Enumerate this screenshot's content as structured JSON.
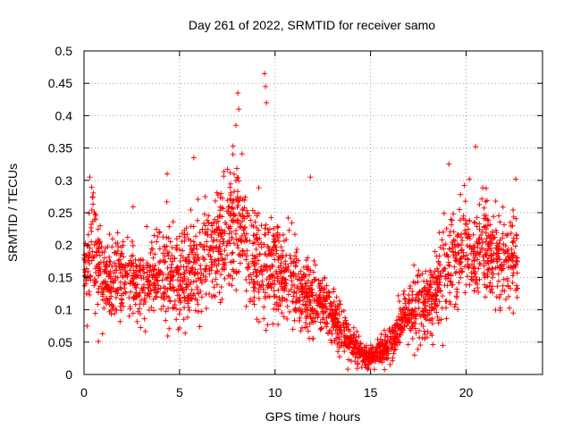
{
  "chart_data": {
    "type": "scatter",
    "title": "Day 261 of 2022, SRMTID for receiver samo",
    "xlabel": "GPS time / hours",
    "ylabel": "SRMTID / TECUs",
    "xlim": [
      0,
      24
    ],
    "ylim": [
      0,
      0.5
    ],
    "x_ticks": [
      0,
      5,
      10,
      15,
      20
    ],
    "y_ticks": [
      0,
      0.05,
      0.1,
      0.15,
      0.2,
      0.25,
      0.3,
      0.35,
      0.4,
      0.45,
      0.5
    ],
    "x_tick_labels": [
      "0",
      "5",
      "10",
      "15",
      "20"
    ],
    "y_tick_labels": [
      "0",
      "0.05",
      "0.1",
      "0.15",
      "0.2",
      "0.25",
      "0.3",
      "0.35",
      "0.4",
      "0.45",
      "0.5"
    ],
    "grid": true,
    "marker": "+",
    "colors": {
      "points": "#ff0000",
      "grid": "#a0a0a0",
      "axes": "#000000"
    },
    "trend_profile": [
      {
        "x": 0.0,
        "y": 0.155,
        "spread": 0.06
      },
      {
        "x": 0.5,
        "y": 0.2,
        "spread": 0.08
      },
      {
        "x": 1.0,
        "y": 0.14,
        "spread": 0.05
      },
      {
        "x": 2.0,
        "y": 0.15,
        "spread": 0.06
      },
      {
        "x": 3.0,
        "y": 0.145,
        "spread": 0.06
      },
      {
        "x": 4.0,
        "y": 0.16,
        "spread": 0.07
      },
      {
        "x": 5.0,
        "y": 0.15,
        "spread": 0.06
      },
      {
        "x": 6.0,
        "y": 0.16,
        "spread": 0.07
      },
      {
        "x": 7.0,
        "y": 0.2,
        "spread": 0.08
      },
      {
        "x": 8.0,
        "y": 0.23,
        "spread": 0.09
      },
      {
        "x": 9.0,
        "y": 0.16,
        "spread": 0.07
      },
      {
        "x": 10.0,
        "y": 0.16,
        "spread": 0.07
      },
      {
        "x": 11.0,
        "y": 0.14,
        "spread": 0.06
      },
      {
        "x": 12.0,
        "y": 0.12,
        "spread": 0.05
      },
      {
        "x": 13.0,
        "y": 0.09,
        "spread": 0.04
      },
      {
        "x": 14.0,
        "y": 0.045,
        "spread": 0.025
      },
      {
        "x": 15.0,
        "y": 0.025,
        "spread": 0.015
      },
      {
        "x": 16.0,
        "y": 0.045,
        "spread": 0.025
      },
      {
        "x": 17.0,
        "y": 0.1,
        "spread": 0.04
      },
      {
        "x": 18.0,
        "y": 0.11,
        "spread": 0.05
      },
      {
        "x": 19.0,
        "y": 0.17,
        "spread": 0.07
      },
      {
        "x": 20.0,
        "y": 0.19,
        "spread": 0.07
      },
      {
        "x": 21.0,
        "y": 0.19,
        "spread": 0.07
      },
      {
        "x": 22.0,
        "y": 0.17,
        "spread": 0.06
      },
      {
        "x": 22.7,
        "y": 0.17,
        "spread": 0.06
      }
    ],
    "notable_points": [
      {
        "x": 9.45,
        "y": 0.465
      },
      {
        "x": 9.5,
        "y": 0.445
      },
      {
        "x": 9.55,
        "y": 0.42
      },
      {
        "x": 8.05,
        "y": 0.435
      },
      {
        "x": 8.1,
        "y": 0.41
      },
      {
        "x": 7.95,
        "y": 0.385
      },
      {
        "x": 7.8,
        "y": 0.34
      },
      {
        "x": 5.75,
        "y": 0.335
      },
      {
        "x": 20.5,
        "y": 0.352
      },
      {
        "x": 19.1,
        "y": 0.325
      },
      {
        "x": 0.3,
        "y": 0.305
      },
      {
        "x": 4.35,
        "y": 0.31
      },
      {
        "x": 11.85,
        "y": 0.305
      },
      {
        "x": 22.6,
        "y": 0.302
      },
      {
        "x": 14.9,
        "y": 0.01
      },
      {
        "x": 15.2,
        "y": 0.008
      },
      {
        "x": 17.3,
        "y": 0.03
      }
    ],
    "point_count": 2600
  }
}
